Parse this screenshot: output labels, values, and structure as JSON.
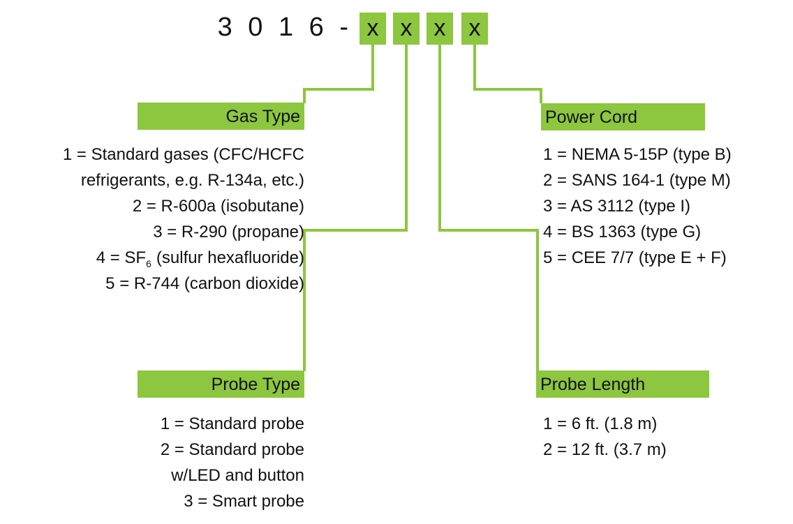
{
  "code": {
    "prefix": "3 0 1 6 -",
    "slots": [
      "x",
      "x",
      "x",
      "x"
    ]
  },
  "groups": [
    {
      "title": "Gas Type",
      "items": [
        "1 = Standard gases (CFC/HCFC",
        "refrigerants, e.g. R-134a, etc.)",
        "2 = R-600a (isobutane)",
        "3 = R-290 (propane)",
        {
          "text": "4 = SF",
          "sub": "6",
          "rest": "(sulfur hexafluoride)"
        },
        "5 = R-744 (carbon dioxide)"
      ]
    },
    {
      "title": "Power Cord",
      "items": [
        "1 = NEMA 5-15P (type B)",
        "2 = SANS 164-1 (type M)",
        "3 = AS 3112 (type I)",
        "4 = BS 1363 (type G)",
        "5 = CEE 7/7 (type E + F)"
      ]
    },
    {
      "title": "Probe Type",
      "items": [
        "1 = Standard probe",
        "2 = Standard probe",
        "w/LED and button",
        "3 = Smart probe"
      ]
    },
    {
      "title": "Probe Length",
      "items": [
        "1 = 6 ft. (1.8 m)",
        "2 = 12 ft. (3.7 m)"
      ]
    }
  ]
}
